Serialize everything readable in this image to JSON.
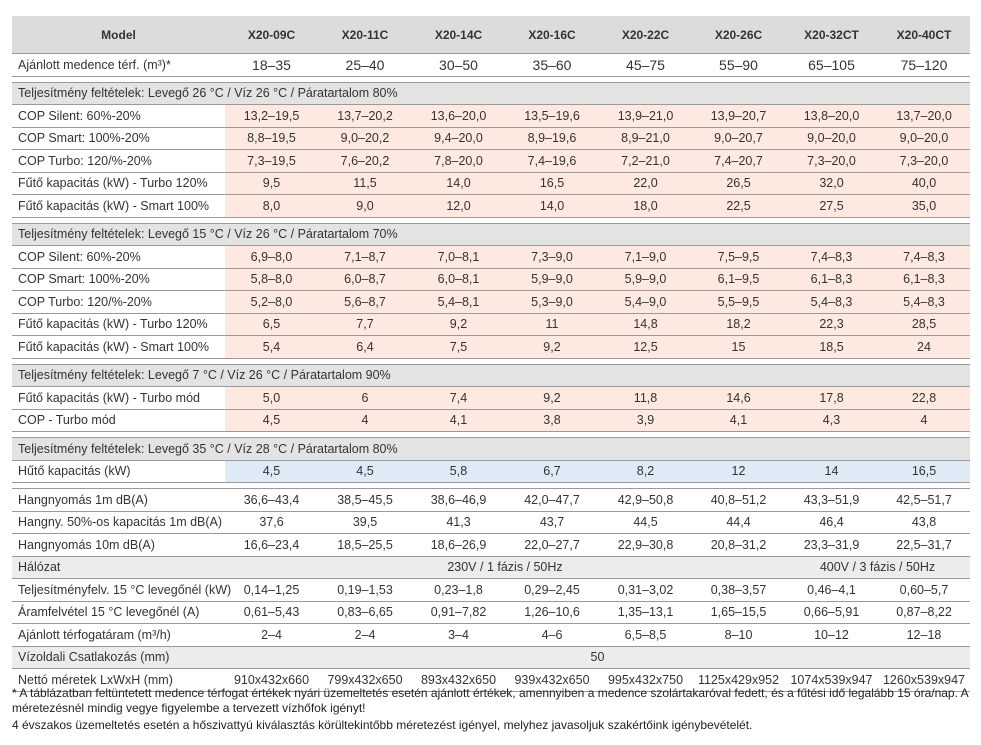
{
  "header": {
    "model_label": "Model",
    "models": [
      "X20-09C",
      "X20-11C",
      "X20-14C",
      "X20-16C",
      "X20-22C",
      "X20-26C",
      "X20-32CT",
      "X20-40CT"
    ]
  },
  "pool": {
    "label": "Ajánlott medence térf. (m³)*",
    "values": [
      "18–35",
      "25–40",
      "30–50",
      "35–60",
      "45–75",
      "55–90",
      "65–105",
      "75–120"
    ]
  },
  "sections": [
    {
      "title": "Teljesítmény feltételek: Levegő 26 °C / Víz 26 °C / Páratartalom 80%",
      "rows": [
        {
          "label": "COP Silent: 60%-20%",
          "values": [
            "13,2–19,5",
            "13,7–20,2",
            "13,6–20,0",
            "13,5–19,6",
            "13,9–21,0",
            "13,9–20,7",
            "13,8–20,0",
            "13,7–20,0"
          ]
        },
        {
          "label": "COP Smart: 100%-20%",
          "values": [
            "8,8–19,5",
            "9,0–20,2",
            "9,4–20,0",
            "8,9–19,6",
            "8,9–21,0",
            "9,0–20,7",
            "9,0–20,0",
            "9,0–20,0"
          ]
        },
        {
          "label": "COP Turbo: 120/%-20%",
          "values": [
            "7,3–19,5",
            "7,6–20,2",
            "7,8–20,0",
            "7,4–19,6",
            "7,2–21,0",
            "7,4–20,7",
            "7,3–20,0",
            "7,3–20,0"
          ]
        },
        {
          "label": "Fűtő kapacitás (kW) - Turbo 120%",
          "values": [
            "9,5",
            "11,5",
            "14,0",
            "16,5",
            "22,0",
            "26,5",
            "32,0",
            "40,0"
          ]
        },
        {
          "label": "Fűtő kapacitás (kW) - Smart 100%",
          "values": [
            "8,0",
            "9,0",
            "12,0",
            "14,0",
            "18,0",
            "22,5",
            "27,5",
            "35,0"
          ]
        }
      ]
    },
    {
      "title": "Teljesítmény feltételek: Levegő 15 °C / Víz 26 °C / Páratartalom 70%",
      "rows": [
        {
          "label": "COP Silent: 60%-20%",
          "values": [
            "6,9–8,0",
            "7,1–8,7",
            "7,0–8,1",
            "7,3–9,0",
            "7,1–9,0",
            "7,5–9,5",
            "7,4–8,3",
            "7,4–8,3"
          ]
        },
        {
          "label": "COP Smart: 100%-20%",
          "values": [
            "5,8–8,0",
            "6,0–8,7",
            "6,0–8,1",
            "5,9–9,0",
            "5,9–9,0",
            "6,1–9,5",
            "6,1–8,3",
            "6,1–8,3"
          ]
        },
        {
          "label": "COP Turbo: 120/%-20%",
          "values": [
            "5,2–8,0",
            "5,6–8,7",
            "5,4–8,1",
            "5,3–9,0",
            "5,4–9,0",
            "5,5–9,5",
            "5,4–8,3",
            "5,4–8,3"
          ]
        },
        {
          "label": "Fűtő kapacitás (kW) - Turbo 120%",
          "values": [
            "6,5",
            "7,7",
            "9,2",
            "11",
            "14,8",
            "18,2",
            "22,3",
            "28,5"
          ]
        },
        {
          "label": "Fűtő kapacitás (kW) - Smart 100%",
          "values": [
            "5,4",
            "6,4",
            "7,5",
            "9,2",
            "12,5",
            "15",
            "18,5",
            "24"
          ]
        }
      ]
    },
    {
      "title": "Teljesítmény feltételek: Levegő 7 °C / Víz 26 °C / Páratartalom 90%",
      "rows": [
        {
          "label": "Fűtő kapacitás (kW) - Turbo mód",
          "values": [
            "5,0",
            "6",
            "7,4",
            "9,2",
            "11,8",
            "14,6",
            "17,8",
            "22,8"
          ]
        },
        {
          "label": "COP - Turbo mód",
          "values": [
            "4,5",
            "4",
            "4,1",
            "3,8",
            "3,9",
            "4,1",
            "4,3",
            "4"
          ]
        }
      ]
    },
    {
      "title": "Teljesítmény feltételek: Levegő 35 °C / Víz 28 °C / Páratartalom 80%",
      "rows": [
        {
          "label": "Hűtő kapacitás (kW)",
          "values": [
            "4,5",
            "4,5",
            "5,8",
            "6,7",
            "8,2",
            "12",
            "14",
            "16,5"
          ]
        }
      ]
    }
  ],
  "specs": {
    "noise1m": {
      "label": "Hangnyomás 1m dB(A)",
      "values": [
        "36,6–43,4",
        "38,5–45,5",
        "38,6–46,9",
        "42,0–47,7",
        "42,9–50,8",
        "40,8–51,2",
        "43,3–51,9",
        "42,5–51,7"
      ]
    },
    "noise50": {
      "label": "Hangny. 50%-os kapacitás 1m dB(A)",
      "values": [
        "37,6",
        "39,5",
        "41,3",
        "43,7",
        "44,5",
        "44,4",
        "46,4",
        "43,8"
      ]
    },
    "noise10m": {
      "label": "Hangnyomás 10m dB(A)",
      "values": [
        "16,6–23,4",
        "18,5–25,5",
        "18,6–26,9",
        "22,0–27,7",
        "22,9–30,8",
        "20,8–31,2",
        "23,3–31,9",
        "22,5–31,7"
      ]
    },
    "network": {
      "label": "Hálózat",
      "single_phase": "230V / 1 fázis / 50Hz",
      "three_phase": "400V / 3 fázis / 50Hz"
    },
    "power": {
      "label": "Teljesítményfelv. 15 °C levegőnél (kW)",
      "values": [
        "0,14–1,25",
        "0,19–1,53",
        "0,23–1,8",
        "0,29–2,45",
        "0,31–3,02",
        "0,38–3,57",
        "0,46–4,1",
        "0,60–5,7"
      ]
    },
    "current": {
      "label": "Áramfelvétel 15 °C levegőnél (A)",
      "values": [
        "0,61–5,43",
        "0,83–6,65",
        "0,91–7,82",
        "1,26–10,6",
        "1,35–13,1",
        "1,65–15,5",
        "0,66–5,91",
        "0,87–8,22"
      ]
    },
    "flow": {
      "label": "Ajánlott térfogatáram (m³/h)",
      "values": [
        "2–4",
        "2–4",
        "3–4",
        "4–6",
        "6,5–8,5",
        "8–10",
        "10–12",
        "12–18"
      ]
    },
    "water": {
      "label": "Vízoldali Csatlakozás (mm)",
      "value": "50"
    },
    "dims": {
      "label": "Nettó méretek LxWxH (mm)",
      "values": [
        "910x432x660",
        "799x432x650",
        "893x432x650",
        "939x432x650",
        "995x432x750",
        "1125x429x952",
        "1074x539x947",
        "1260x539x947"
      ]
    }
  },
  "notes": {
    "note1": "* A táblázatban feltüntetett medence térfogat értékek nyári üzemeltetés esetén ajánlott értékek, amennyiben a medence szolártakaróval fedett, és a fűtési idő legalább 15 óra/nap. A méretezésnél mindig vegye figyelembe a tervezett vízhőfok igényt!",
    "note2": "4 évszakos üzemeltetés esetén a hőszivattyú kiválasztás körültekintőbb méretezést igényel, melyhez javasoljuk szakértőink igénybevételét."
  }
}
